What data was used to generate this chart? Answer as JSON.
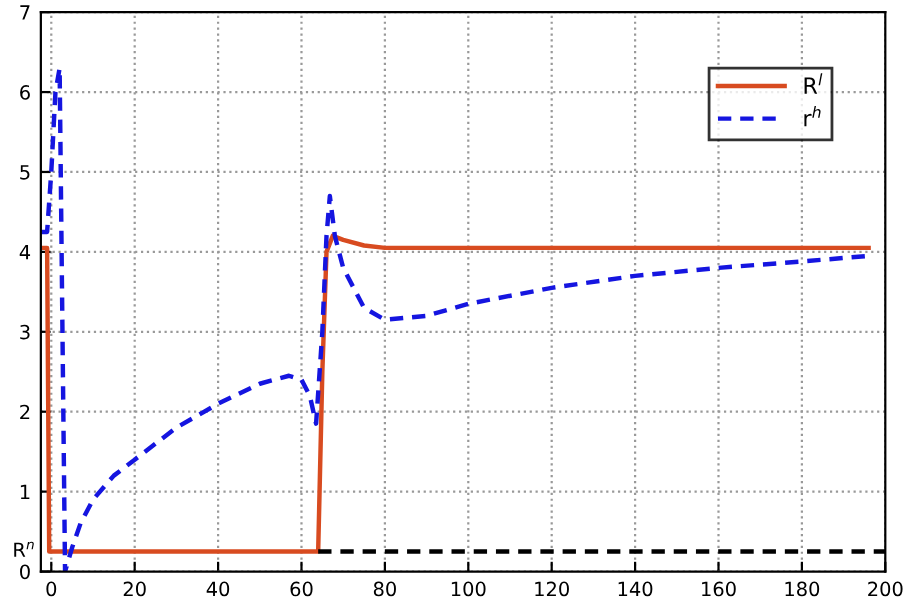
{
  "chart_data": {
    "type": "line",
    "xlim": [
      -2.5,
      200
    ],
    "ylim": [
      0,
      7
    ],
    "xticks": [
      0,
      20,
      40,
      60,
      80,
      100,
      120,
      140,
      160,
      180,
      200
    ],
    "yticks": [
      0,
      1,
      2,
      3,
      4,
      5,
      6,
      7
    ],
    "grid": true,
    "legend": "top right",
    "series": [
      {
        "name": "R$^{l}$",
        "color": "#d84b20",
        "line_style": "solid",
        "x": [
          -2.5,
          -1,
          -0.5,
          64,
          65,
          66,
          67.5,
          70,
          75,
          80,
          90,
          120,
          160,
          196
        ],
        "values": [
          4.05,
          4.05,
          0.25,
          0.25,
          2.5,
          4.0,
          4.2,
          4.15,
          4.08,
          4.05,
          4.05,
          4.05,
          4.05,
          4.05
        ]
      },
      {
        "name": "r$^{h}$",
        "color": "#1515e0",
        "line_style": "dashed",
        "x": [
          -2.5,
          -1,
          0,
          1,
          2,
          3.3,
          5,
          7,
          10,
          15,
          20,
          30,
          40,
          50,
          57,
          60,
          62,
          63.5,
          65,
          66,
          66.8,
          68,
          70,
          75,
          80,
          90,
          100,
          120,
          140,
          160,
          180,
          196
        ],
        "values": [
          4.25,
          4.25,
          5.0,
          6.0,
          6.3,
          0.0,
          0.3,
          0.6,
          0.9,
          1.2,
          1.4,
          1.8,
          2.1,
          2.35,
          2.45,
          2.4,
          2.2,
          1.85,
          3.0,
          4.2,
          4.7,
          4.2,
          3.8,
          3.3,
          3.15,
          3.2,
          3.35,
          3.55,
          3.7,
          3.8,
          3.88,
          3.95
        ]
      },
      {
        "color": "#000000",
        "line_style": "dashed",
        "x": [
          64,
          200
        ],
        "values": [
          0.25,
          0.25
        ]
      }
    ],
    "annotations": [
      {
        "text": "R$^{n}$",
        "x": -2.5,
        "y": 0.25
      }
    ]
  }
}
